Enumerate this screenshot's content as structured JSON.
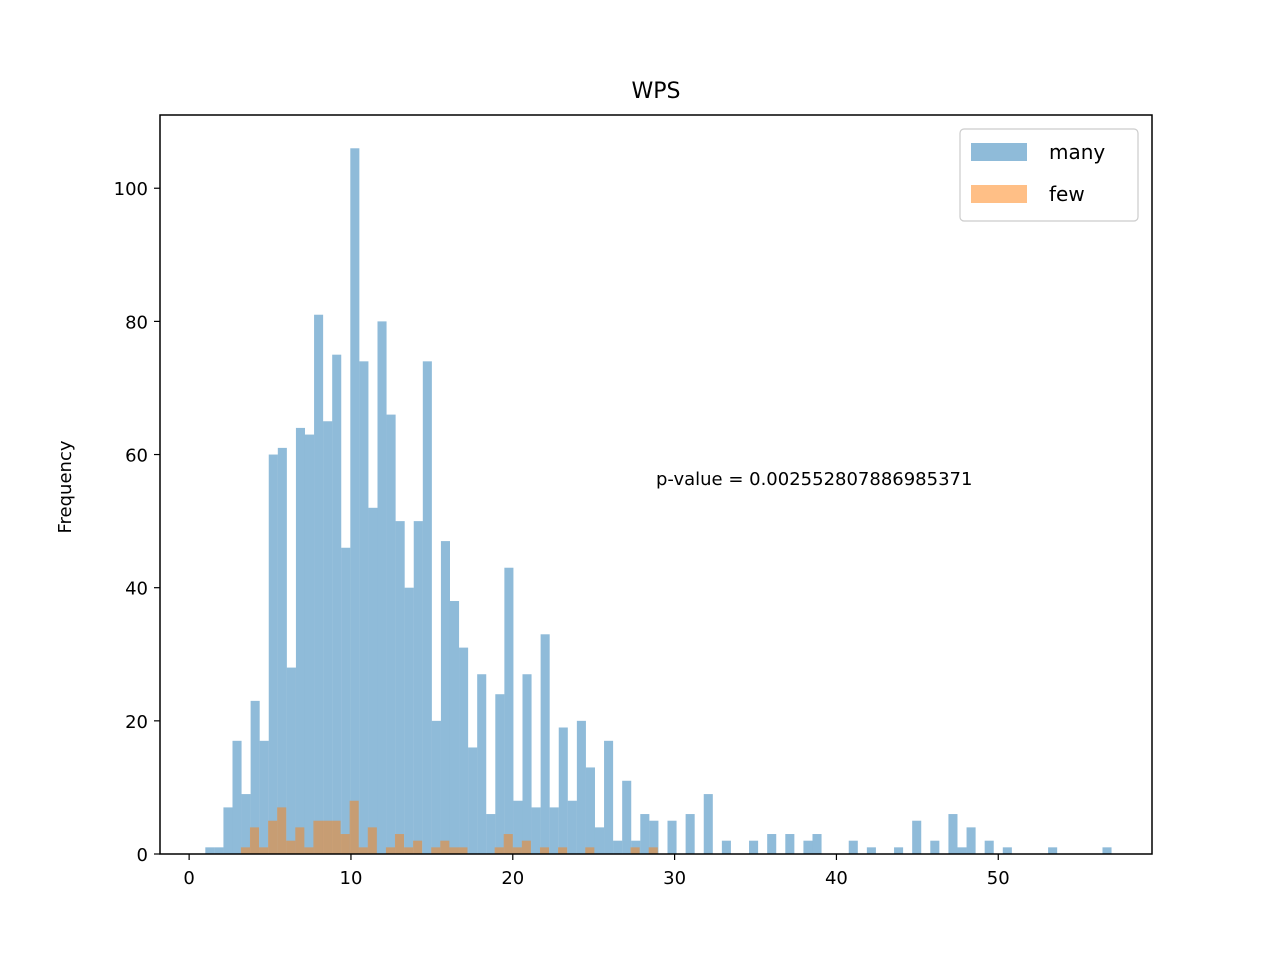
{
  "chart_data": {
    "type": "bar",
    "title": "WPS",
    "xlabel": "",
    "ylabel": "Frequency",
    "annotation": "p-value = 0.002552807886985371",
    "xlim": [
      -1.8,
      59.5
    ],
    "ylim": [
      0,
      111
    ],
    "xticks": [
      0,
      10,
      20,
      30,
      40,
      50
    ],
    "yticks": [
      0,
      20,
      40,
      60,
      80,
      100
    ],
    "legend_position": "top-right",
    "bin_width": 0.56,
    "series": [
      {
        "name": "many",
        "color": "#1f77b4",
        "opacity": 0.5,
        "bins": [
          [
            1.0,
            1
          ],
          [
            1.56,
            1
          ],
          [
            2.12,
            7
          ],
          [
            2.68,
            17
          ],
          [
            3.24,
            9
          ],
          [
            3.8,
            23
          ],
          [
            4.36,
            17
          ],
          [
            4.92,
            60
          ],
          [
            5.48,
            61
          ],
          [
            6.04,
            28
          ],
          [
            6.6,
            64
          ],
          [
            7.16,
            63
          ],
          [
            7.72,
            81
          ],
          [
            8.28,
            65
          ],
          [
            8.84,
            75
          ],
          [
            9.4,
            46
          ],
          [
            9.96,
            106
          ],
          [
            10.52,
            74
          ],
          [
            11.08,
            52
          ],
          [
            11.64,
            80
          ],
          [
            12.2,
            66
          ],
          [
            12.76,
            50
          ],
          [
            13.32,
            40
          ],
          [
            13.88,
            50
          ],
          [
            14.44,
            74
          ],
          [
            15.0,
            20
          ],
          [
            15.56,
            47
          ],
          [
            16.12,
            38
          ],
          [
            16.68,
            31
          ],
          [
            17.24,
            16
          ],
          [
            17.8,
            27
          ],
          [
            18.36,
            6
          ],
          [
            18.92,
            24
          ],
          [
            19.48,
            43
          ],
          [
            20.04,
            8
          ],
          [
            20.6,
            27
          ],
          [
            21.16,
            7
          ],
          [
            21.72,
            33
          ],
          [
            22.28,
            7
          ],
          [
            22.84,
            19
          ],
          [
            23.4,
            8
          ],
          [
            23.96,
            20
          ],
          [
            24.52,
            13
          ],
          [
            25.08,
            4
          ],
          [
            25.64,
            17
          ],
          [
            26.2,
            2
          ],
          [
            26.76,
            11
          ],
          [
            27.32,
            2
          ],
          [
            27.88,
            6
          ],
          [
            28.44,
            5
          ],
          [
            29.56,
            5
          ],
          [
            30.68,
            6
          ],
          [
            31.8,
            9
          ],
          [
            32.92,
            2
          ],
          [
            34.6,
            2
          ],
          [
            35.72,
            3
          ],
          [
            36.84,
            3
          ],
          [
            37.96,
            2
          ],
          [
            38.52,
            3
          ],
          [
            40.76,
            2
          ],
          [
            41.88,
            1
          ],
          [
            43.56,
            1
          ],
          [
            44.68,
            5
          ],
          [
            45.8,
            2
          ],
          [
            46.92,
            6
          ],
          [
            47.48,
            1
          ],
          [
            48.04,
            4
          ],
          [
            49.16,
            2
          ],
          [
            50.28,
            1
          ],
          [
            53.08,
            1
          ],
          [
            56.44,
            1
          ]
        ]
      },
      {
        "name": "few",
        "color": "#ff7f0e",
        "opacity": 0.5,
        "bins": [
          [
            3.2,
            1
          ],
          [
            3.76,
            4
          ],
          [
            4.32,
            1
          ],
          [
            4.88,
            5
          ],
          [
            5.44,
            7
          ],
          [
            6.0,
            2
          ],
          [
            6.56,
            4
          ],
          [
            7.12,
            1
          ],
          [
            7.68,
            5
          ],
          [
            8.24,
            5
          ],
          [
            8.8,
            5
          ],
          [
            9.36,
            3
          ],
          [
            9.92,
            8
          ],
          [
            10.48,
            1
          ],
          [
            11.04,
            4
          ],
          [
            12.16,
            1
          ],
          [
            12.72,
            3
          ],
          [
            13.28,
            1
          ],
          [
            13.84,
            2
          ],
          [
            14.96,
            1
          ],
          [
            15.52,
            2
          ],
          [
            16.08,
            1
          ],
          [
            16.64,
            1
          ],
          [
            18.88,
            1
          ],
          [
            19.44,
            3
          ],
          [
            20.0,
            1
          ],
          [
            20.56,
            2
          ],
          [
            21.68,
            1
          ],
          [
            22.8,
            1
          ],
          [
            24.48,
            1
          ],
          [
            27.28,
            1
          ],
          [
            28.4,
            1
          ]
        ]
      }
    ]
  }
}
